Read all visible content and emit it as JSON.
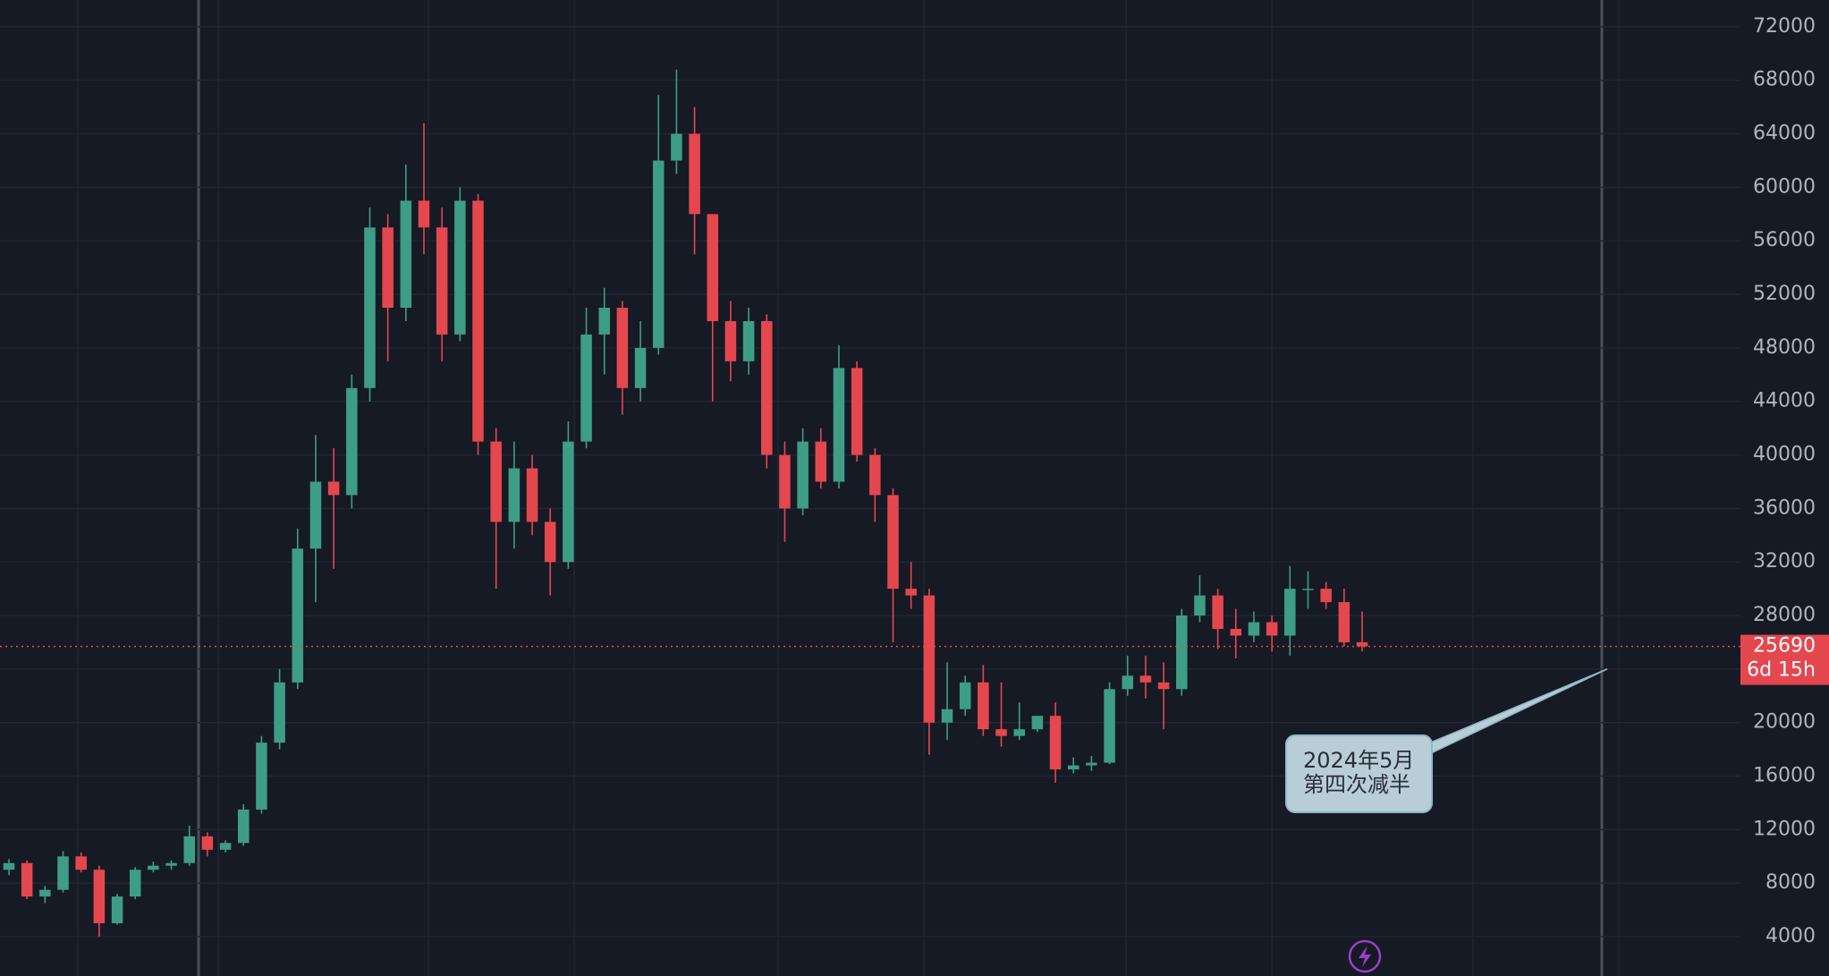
{
  "chart_data": {
    "type": "candlestick",
    "up_color": "#3e9d85",
    "down_color": "#e5474f",
    "open": [
      9000,
      9500,
      7000,
      7500,
      10000,
      9000,
      5000,
      7000,
      9000,
      9300,
      9500,
      11500,
      10500,
      11000,
      13500,
      18500,
      23000,
      33000,
      38000,
      37000,
      45000,
      57000,
      51000,
      59000,
      57000,
      49000,
      59000,
      41000,
      35000,
      39000,
      35000,
      32000,
      41000,
      49000,
      51000,
      45000,
      48000,
      62000,
      64000,
      58000,
      50000,
      47000,
      50000,
      40000,
      36000,
      41000,
      38000,
      46500,
      40000,
      37000,
      30000,
      29500,
      20000,
      21000,
      23000,
      19500,
      19000,
      19500,
      20500,
      16500,
      16800,
      17000,
      22500,
      23500,
      23000,
      22500,
      28000,
      29500,
      27000,
      26500,
      27500,
      26500,
      30000,
      30000,
      29000,
      26000
    ],
    "high": [
      9800,
      9700,
      7800,
      10400,
      10300,
      9300,
      7200,
      9200,
      9600,
      9700,
      12300,
      11800,
      11200,
      13900,
      19000,
      24000,
      34500,
      41500,
      40500,
      46000,
      58500,
      58000,
      61700,
      64800,
      58500,
      60000,
      59500,
      42000,
      41000,
      40000,
      36000,
      42500,
      51000,
      52500,
      51500,
      50000,
      66900,
      68800,
      66000,
      58000,
      51500,
      51000,
      50500,
      41000,
      42000,
      42000,
      48200,
      47000,
      40500,
      37500,
      32000,
      30000,
      24500,
      23500,
      24300,
      23000,
      21500,
      20500,
      21500,
      17400,
      17500,
      23000,
      25000,
      25000,
      24500,
      28500,
      31000,
      30000,
      28500,
      28300,
      28000,
      31700,
      31300,
      30500,
      30000,
      28300
    ],
    "low": [
      8600,
      6800,
      6500,
      7300,
      8800,
      4000,
      4900,
      6800,
      8800,
      9000,
      9300,
      10000,
      10300,
      10800,
      13200,
      18000,
      22500,
      29000,
      31500,
      36000,
      44000,
      47000,
      50000,
      55000,
      47000,
      48500,
      40000,
      30000,
      33000,
      34000,
      29500,
      31500,
      40500,
      46000,
      43000,
      44000,
      47500,
      61000,
      55000,
      44000,
      45500,
      46000,
      39000,
      33500,
      35500,
      37500,
      37500,
      39500,
      35000,
      26000,
      28500,
      17600,
      18700,
      20500,
      19000,
      18200,
      18700,
      19300,
      15500,
      16200,
      16400,
      16900,
      22000,
      21800,
      19500,
      22000,
      27500,
      25500,
      24800,
      26000,
      25300,
      25000,
      28500,
      28500,
      25700,
      25300
    ],
    "close": [
      9500,
      7000,
      7500,
      10000,
      9000,
      5000,
      7000,
      9000,
      9300,
      9500,
      11500,
      10500,
      11000,
      13500,
      18500,
      23000,
      33000,
      38000,
      37000,
      45000,
      57000,
      51000,
      59000,
      57000,
      49000,
      59000,
      41000,
      35000,
      39000,
      35000,
      32000,
      41000,
      49000,
      51000,
      45000,
      48000,
      62000,
      64000,
      58000,
      50000,
      47000,
      50000,
      40000,
      36000,
      41000,
      38000,
      46500,
      40000,
      37000,
      30000,
      29500,
      20000,
      21000,
      23000,
      19500,
      19000,
      19500,
      20500,
      16500,
      16800,
      17000,
      22500,
      23500,
      23000,
      22500,
      28000,
      29500,
      27000,
      26500,
      27500,
      26500,
      30000,
      30000,
      29000,
      26000,
      25690
    ],
    "ylim": [
      1060,
      74000
    ],
    "yticks": [
      4000,
      8000,
      12000,
      16000,
      20000,
      24000,
      28000,
      32000,
      36000,
      40000,
      44000,
      48000,
      52000,
      56000,
      60000,
      64000,
      68000,
      72000
    ],
    "grid": true,
    "last_price": 25690,
    "countdown": "6d 15h",
    "annotation": {
      "lines": [
        "2024年5月",
        "第四次减半"
      ],
      "value": 24000
    }
  }
}
